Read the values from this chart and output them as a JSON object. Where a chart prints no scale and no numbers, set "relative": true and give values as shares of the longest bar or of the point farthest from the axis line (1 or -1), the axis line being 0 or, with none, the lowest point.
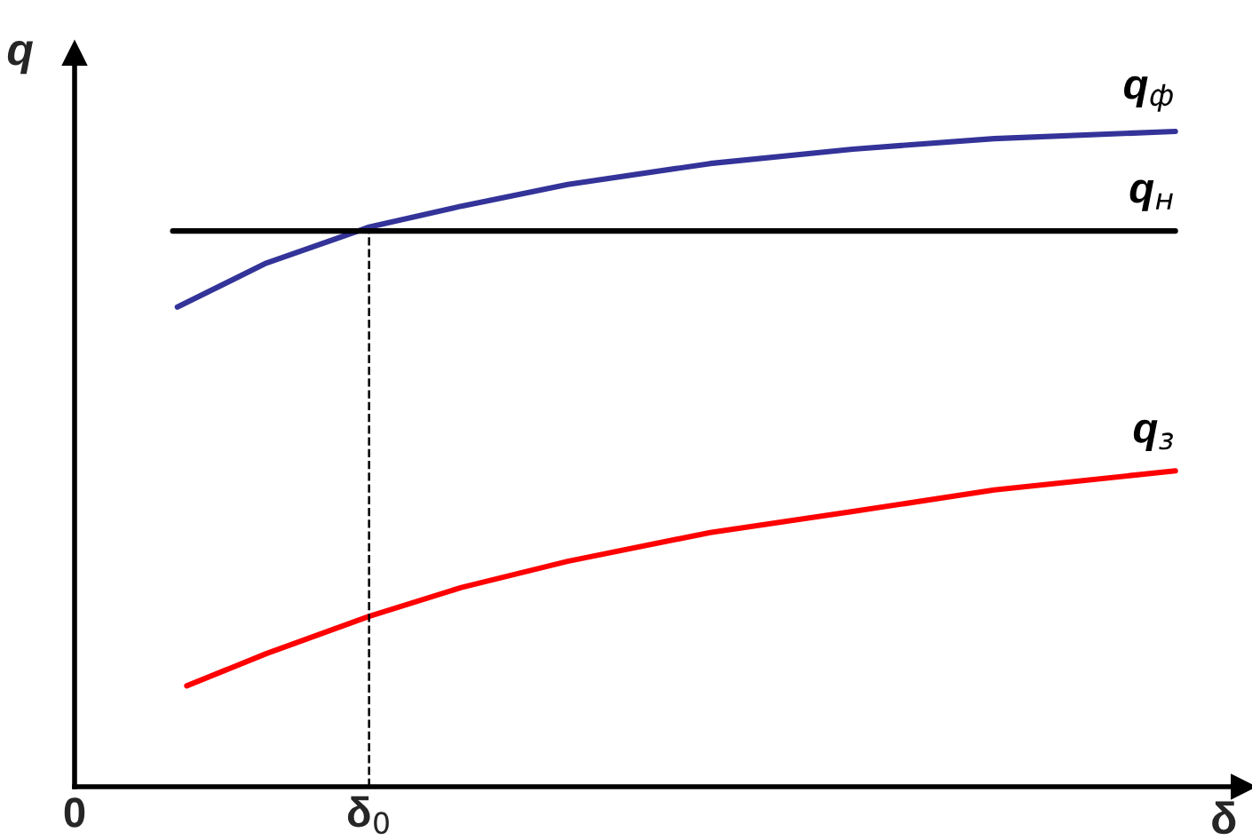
{
  "chart_data": {
    "type": "line",
    "relative": true,
    "ylabel": "q",
    "xlabel": "δ",
    "xlim": [
      0,
      1
    ],
    "xticks": [
      {
        "value": 0,
        "label": "0"
      },
      {
        "value": 0.252,
        "label": "δ$_{0}$"
      }
    ],
    "grid": false,
    "marker": "none",
    "line_style": "solid",
    "series": [
      {
        "name": "q$_{ф}$",
        "color": "#333399",
        "x": [
          0.088,
          0.164,
          0.252,
          0.331,
          0.422,
          0.544,
          0.666,
          0.787,
          0.942
        ],
        "values": [
          0.732,
          0.799,
          0.854,
          0.886,
          0.919,
          0.951,
          0.973,
          0.989,
          1.0
        ]
      },
      {
        "name": "q$_{н}$",
        "color": "#000000",
        "x": [
          0.084,
          0.942
        ],
        "values": [
          0.848,
          0.848
        ]
      },
      {
        "name": "q$_{з}$",
        "color": "#ff0000",
        "x": [
          0.096,
          0.164,
          0.252,
          0.331,
          0.422,
          0.544,
          0.666,
          0.787,
          0.942
        ],
        "values": [
          0.154,
          0.203,
          0.26,
          0.304,
          0.344,
          0.388,
          0.42,
          0.453,
          0.482
        ]
      }
    ],
    "ref_lines": [
      {
        "axis": "x",
        "value": 0.252,
        "color": "#000000",
        "line_style": "dashed"
      }
    ]
  }
}
